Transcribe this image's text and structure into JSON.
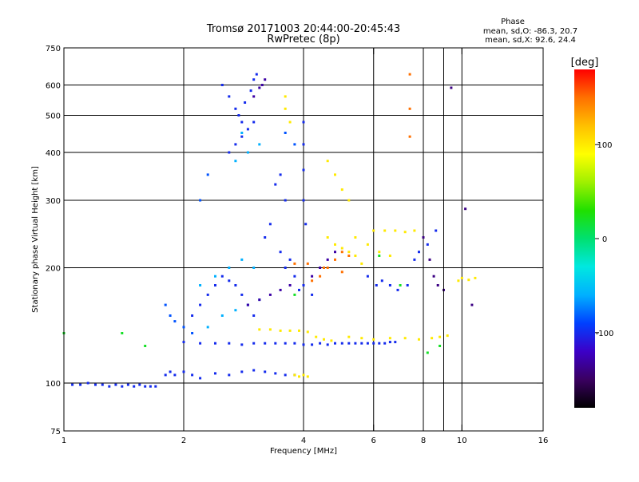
{
  "chart_data": {
    "type": "scatter",
    "title": "Tromsø 20171003 20:44:00-20:45:43",
    "subtitle": "RwPretec (8p)",
    "xlabel": "Frequency [MHz]",
    "ylabel": "Stationary phase Virtual Height [km]",
    "x_scale": "log",
    "y_scale": "log",
    "xlim": [
      1,
      16
    ],
    "ylim": [
      75,
      750
    ],
    "grid": true,
    "x_ticks": [
      1,
      2,
      4,
      6,
      8,
      10,
      16
    ],
    "x_tick_labels": [
      "1",
      "2",
      "4",
      "6",
      "8",
      "10",
      "16"
    ],
    "x_minor_ticks": [
      9
    ],
    "y_ticks": [
      75,
      100,
      200,
      300,
      400,
      500,
      600,
      750
    ],
    "y_tick_labels": [
      "75",
      "100",
      "200",
      "300",
      "400",
      "500",
      "600",
      "750"
    ],
    "stats": {
      "heading": "Phase",
      "line_o": "mean, sd,O: -86.3, 20.7",
      "line_x": "mean, sd,X:  92.6, 24.4"
    },
    "colorbar": {
      "label": "[deg]",
      "min": -180,
      "max": 180,
      "ticks": [
        100,
        0,
        -100
      ],
      "tick_labels": [
        "100",
        "0",
        "-100"
      ],
      "colors": [
        "#000000",
        "#3a0060",
        "#3c00c8",
        "#0040ff",
        "#00b0ff",
        "#00e8e0",
        "#00e070",
        "#20e000",
        "#a0f000",
        "#ffff00",
        "#ffc000",
        "#ff7000",
        "#ff0000"
      ]
    },
    "series": [
      {
        "points": [
          [
            1.05,
            99
          ],
          [
            1.1,
            99
          ],
          [
            1.15,
            100
          ],
          [
            1.2,
            99
          ],
          [
            1.25,
            99
          ],
          [
            1.3,
            98
          ],
          [
            1.35,
            99
          ],
          [
            1.4,
            98
          ],
          [
            1.45,
            99
          ],
          [
            1.5,
            98
          ],
          [
            1.55,
            99
          ],
          [
            1.6,
            98
          ],
          [
            1.65,
            98
          ],
          [
            1.7,
            98
          ],
          [
            1.8,
            105
          ],
          [
            1.85,
            107
          ],
          [
            1.9,
            105
          ],
          [
            2.0,
            107
          ],
          [
            2.1,
            105
          ],
          [
            2.2,
            103
          ],
          [
            2.4,
            106
          ],
          [
            2.6,
            105
          ],
          [
            2.8,
            107
          ],
          [
            3.0,
            108
          ],
          [
            3.2,
            107
          ],
          [
            3.4,
            106
          ],
          [
            3.6,
            105
          ],
          [
            3.8,
            105
          ],
          [
            2.0,
            128
          ],
          [
            2.2,
            127
          ],
          [
            2.4,
            127
          ],
          [
            2.6,
            127
          ],
          [
            2.8,
            126
          ],
          [
            3.0,
            127
          ],
          [
            3.2,
            127
          ],
          [
            3.4,
            127
          ],
          [
            3.6,
            127
          ],
          [
            3.8,
            127
          ],
          [
            4.0,
            126
          ],
          [
            4.2,
            126
          ],
          [
            4.4,
            127
          ],
          [
            4.6,
            126
          ],
          [
            4.8,
            127
          ],
          [
            5.0,
            127
          ],
          [
            5.2,
            127
          ],
          [
            5.4,
            127
          ],
          [
            5.6,
            127
          ],
          [
            5.8,
            127
          ],
          [
            6.0,
            127
          ],
          [
            6.2,
            127
          ],
          [
            6.4,
            127
          ],
          [
            6.6,
            128
          ],
          [
            6.8,
            128
          ],
          [
            2.1,
            150
          ],
          [
            2.2,
            160
          ],
          [
            2.3,
            170
          ],
          [
            2.4,
            180
          ],
          [
            2.5,
            190
          ],
          [
            2.6,
            185
          ],
          [
            2.7,
            180
          ],
          [
            2.8,
            170
          ],
          [
            2.9,
            160
          ],
          [
            3.0,
            150
          ],
          [
            2.6,
            400
          ],
          [
            2.7,
            420
          ],
          [
            2.8,
            440
          ],
          [
            2.9,
            460
          ],
          [
            3.0,
            480
          ],
          [
            2.75,
            500
          ],
          [
            2.85,
            540
          ],
          [
            2.95,
            580
          ],
          [
            3.0,
            620
          ],
          [
            3.05,
            640
          ],
          [
            2.5,
            600
          ],
          [
            2.6,
            560
          ],
          [
            2.7,
            520
          ],
          [
            2.8,
            480
          ],
          [
            3.4,
            330
          ],
          [
            3.5,
            350
          ],
          [
            3.6,
            300
          ],
          [
            3.3,
            260
          ],
          [
            3.2,
            240
          ],
          [
            3.5,
            220
          ],
          [
            3.7,
            210
          ],
          [
            4.0,
            480
          ],
          [
            4.0,
            420
          ],
          [
            4.0,
            360
          ],
          [
            4.0,
            300
          ],
          [
            4.05,
            260
          ],
          [
            3.6,
            200
          ],
          [
            3.8,
            190
          ],
          [
            4.0,
            180
          ],
          [
            4.2,
            170
          ],
          [
            3.9,
            175
          ],
          [
            5.8,
            190
          ],
          [
            6.1,
            180
          ],
          [
            6.3,
            185
          ],
          [
            6.6,
            180
          ],
          [
            6.9,
            175
          ],
          [
            7.3,
            180
          ],
          [
            7.6,
            210
          ],
          [
            7.8,
            220
          ],
          [
            8.2,
            230
          ],
          [
            8.6,
            250
          ]
        ],
        "phase": -100
      },
      {
        "points": [
          [
            2.3,
            140
          ],
          [
            2.5,
            150
          ],
          [
            2.7,
            155
          ],
          [
            2.9,
            160
          ],
          [
            3.1,
            165
          ],
          [
            2.2,
            180
          ],
          [
            2.4,
            190
          ],
          [
            2.6,
            200
          ],
          [
            2.8,
            210
          ],
          [
            3.0,
            200
          ],
          [
            2.7,
            380
          ],
          [
            2.9,
            400
          ],
          [
            3.1,
            420
          ],
          [
            2.8,
            450
          ]
        ],
        "phase": -60
      },
      {
        "points": [
          [
            2.9,
            160
          ],
          [
            3.1,
            165
          ],
          [
            3.3,
            170
          ],
          [
            3.5,
            175
          ],
          [
            3.7,
            180
          ],
          [
            4.2,
            190
          ],
          [
            4.4,
            200
          ],
          [
            4.6,
            210
          ],
          [
            4.8,
            220
          ],
          [
            3.0,
            560
          ],
          [
            3.1,
            590
          ],
          [
            3.2,
            620
          ],
          [
            3.15,
            600
          ]
        ],
        "phase": -130
      },
      {
        "points": [
          [
            3.1,
            138
          ],
          [
            3.3,
            138
          ],
          [
            3.5,
            137
          ],
          [
            3.7,
            137
          ],
          [
            3.9,
            137
          ],
          [
            4.1,
            136
          ],
          [
            4.3,
            132
          ],
          [
            4.5,
            130
          ],
          [
            4.7,
            129
          ],
          [
            5.2,
            132
          ],
          [
            5.6,
            131
          ],
          [
            6.0,
            130
          ],
          [
            6.6,
            131
          ],
          [
            7.2,
            131
          ],
          [
            7.8,
            130
          ],
          [
            8.4,
            131
          ],
          [
            8.8,
            132
          ],
          [
            9.2,
            133
          ],
          [
            3.8,
            105
          ],
          [
            3.9,
            104
          ],
          [
            4.0,
            105
          ],
          [
            4.1,
            104
          ],
          [
            3.6,
            560
          ],
          [
            3.6,
            520
          ],
          [
            3.7,
            480
          ],
          [
            9.8,
            185
          ],
          [
            10.0,
            188
          ],
          [
            10.4,
            186
          ],
          [
            10.8,
            188
          ],
          [
            4.6,
            240
          ],
          [
            4.8,
            230
          ],
          [
            5.0,
            225
          ],
          [
            5.2,
            220
          ],
          [
            5.4,
            215
          ],
          [
            5.6,
            205
          ],
          [
            6.0,
            250
          ],
          [
            6.4,
            250
          ],
          [
            6.8,
            250
          ],
          [
            7.2,
            248
          ],
          [
            7.6,
            250
          ],
          [
            4.6,
            380
          ],
          [
            4.8,
            350
          ],
          [
            5.0,
            320
          ],
          [
            5.2,
            300
          ],
          [
            5.4,
            240
          ],
          [
            5.8,
            230
          ],
          [
            6.2,
            220
          ],
          [
            6.6,
            215
          ]
        ],
        "phase": 100
      },
      {
        "points": [
          [
            4.6,
            200
          ],
          [
            4.8,
            210
          ],
          [
            5.0,
            220
          ],
          [
            5.2,
            215
          ],
          [
            4.4,
            190
          ],
          [
            4.2,
            185
          ],
          [
            5.0,
            195
          ],
          [
            3.8,
            205
          ],
          [
            4.1,
            205
          ],
          [
            4.5,
            200
          ],
          [
            7.4,
            640
          ],
          [
            7.4,
            520
          ],
          [
            7.4,
            440
          ]
        ],
        "phase": 150
      },
      {
        "points": [
          [
            1.8,
            160
          ],
          [
            1.85,
            150
          ],
          [
            1.9,
            145
          ],
          [
            2.0,
            140
          ],
          [
            2.1,
            135
          ],
          [
            2.2,
            300
          ],
          [
            2.3,
            350
          ],
          [
            3.6,
            450
          ],
          [
            3.8,
            420
          ]
        ],
        "phase": -85
      },
      {
        "points": [
          [
            8.0,
            240
          ],
          [
            8.3,
            210
          ],
          [
            8.5,
            190
          ],
          [
            8.7,
            180
          ],
          [
            9.0,
            175
          ],
          [
            9.4,
            590
          ],
          [
            10.2,
            285
          ],
          [
            10.6,
            160
          ]
        ],
        "phase": -140
      },
      {
        "points": [
          [
            1.0,
            135
          ],
          [
            1.4,
            135
          ],
          [
            1.6,
            125
          ],
          [
            3.8,
            170
          ],
          [
            6.2,
            215
          ],
          [
            7.0,
            180
          ],
          [
            8.2,
            120
          ],
          [
            8.8,
            125
          ]
        ],
        "phase": 20
      }
    ]
  }
}
